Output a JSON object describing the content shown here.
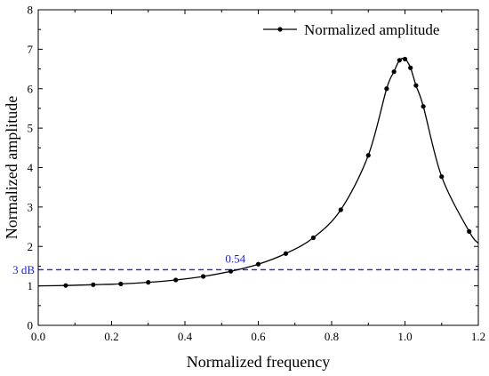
{
  "chart_data": {
    "type": "line",
    "title": "",
    "xlabel": "Normalized frequency",
    "ylabel": "Normalized amplitude",
    "xlim": [
      0.0,
      1.2
    ],
    "ylim": [
      0,
      8
    ],
    "x_ticks": [
      0.0,
      0.2,
      0.4,
      0.6,
      0.8,
      1.0,
      1.2
    ],
    "x_tick_labels": [
      "0.0",
      "0.2",
      "0.4",
      "0.6",
      "0.8",
      "1.0",
      "1.2"
    ],
    "y_ticks": [
      0,
      1,
      2,
      3,
      4,
      5,
      6,
      7,
      8
    ],
    "y_tick_labels": [
      "0",
      "1",
      "2",
      "3",
      "4",
      "5",
      "6",
      "7",
      "8"
    ],
    "grid": false,
    "legend_position": "top-right",
    "series": [
      {
        "name": "Normalized amplitude",
        "color": "#000000",
        "marker": "circle",
        "x": [
          0.075,
          0.15,
          0.225,
          0.3,
          0.375,
          0.45,
          0.525,
          0.6,
          0.675,
          0.75,
          0.825,
          0.9,
          0.95,
          0.97,
          0.985,
          1.0,
          1.015,
          1.03,
          1.05,
          1.1,
          1.175
        ],
        "y": [
          1.01,
          1.03,
          1.05,
          1.09,
          1.15,
          1.24,
          1.37,
          1.55,
          1.82,
          2.22,
          2.93,
          4.31,
          6.0,
          6.43,
          6.72,
          6.75,
          6.53,
          6.08,
          5.55,
          3.77,
          2.38
        ]
      }
    ],
    "curve": {
      "x": [
        0.0,
        0.075,
        0.15,
        0.225,
        0.3,
        0.375,
        0.45,
        0.525,
        0.6,
        0.675,
        0.75,
        0.825,
        0.9,
        0.95,
        0.97,
        0.985,
        1.0,
        1.015,
        1.03,
        1.05,
        1.1,
        1.175,
        1.2
      ],
      "y": [
        1.0,
        1.01,
        1.03,
        1.05,
        1.09,
        1.15,
        1.24,
        1.37,
        1.55,
        1.82,
        2.22,
        2.93,
        4.31,
        6.0,
        6.43,
        6.72,
        6.75,
        6.53,
        6.08,
        5.55,
        3.77,
        2.38,
        2.08
      ]
    },
    "reference_line": {
      "y": 1.41,
      "label": "3 dB",
      "color": "#1f1fe0",
      "style": "dashed"
    },
    "annotation": {
      "text": "0.54",
      "x": 0.54,
      "y": 1.41,
      "color": "#1f1fe0"
    }
  }
}
